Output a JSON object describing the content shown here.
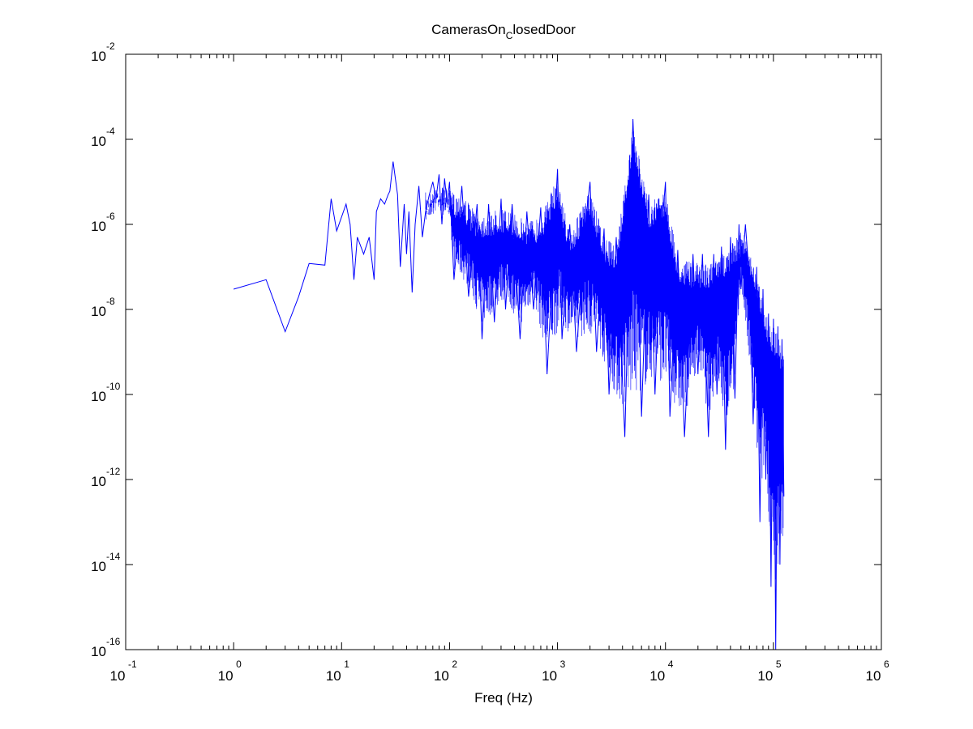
{
  "chart_data": {
    "type": "line",
    "title": {
      "main": "CamerasOn",
      "subscript": "C",
      "rest": "losedDoor"
    },
    "xlabel": "Freq (Hz)",
    "ylabel": "",
    "xscale": "log",
    "yscale": "log",
    "xlim": [
      0.1,
      1000000
    ],
    "ylim": [
      1e-16,
      0.01
    ],
    "grid": false,
    "legend": "none",
    "line_color": "#0000ff",
    "x_ticks": [
      {
        "base": "10",
        "exp": "-1",
        "value": 0.1
      },
      {
        "base": "10",
        "exp": "0",
        "value": 1
      },
      {
        "base": "10",
        "exp": "1",
        "value": 10
      },
      {
        "base": "10",
        "exp": "2",
        "value": 100
      },
      {
        "base": "10",
        "exp": "3",
        "value": 1000
      },
      {
        "base": "10",
        "exp": "4",
        "value": 10000
      },
      {
        "base": "10",
        "exp": "5",
        "value": 100000
      },
      {
        "base": "10",
        "exp": "6",
        "value": 1000000
      }
    ],
    "y_ticks": [
      {
        "base": "10",
        "exp": "-2",
        "value": 0.01
      },
      {
        "base": "10",
        "exp": "-4",
        "value": 0.0001
      },
      {
        "base": "10",
        "exp": "-6",
        "value": 1e-06
      },
      {
        "base": "10",
        "exp": "-8",
        "value": 1e-08
      },
      {
        "base": "10",
        "exp": "-10",
        "value": 1e-10
      },
      {
        "base": "10",
        "exp": "-12",
        "value": 1e-12
      },
      {
        "base": "10",
        "exp": "-14",
        "value": 1e-14
      },
      {
        "base": "10",
        "exp": "-16",
        "value": 1e-16
      }
    ],
    "series": [
      {
        "points": [
          [
            1,
            3e-08
          ],
          [
            2,
            5e-08
          ],
          [
            3,
            3e-09
          ],
          [
            4,
            2e-08
          ],
          [
            5,
            1.2e-07
          ],
          [
            7,
            1.1e-07
          ],
          [
            8,
            4e-06
          ],
          [
            9,
            7e-07
          ],
          [
            11,
            3e-06
          ],
          [
            12,
            1e-06
          ],
          [
            13,
            5e-08
          ],
          [
            14,
            5e-07
          ],
          [
            16,
            2e-07
          ],
          [
            18,
            5e-07
          ],
          [
            20,
            5e-08
          ],
          [
            21,
            2e-06
          ],
          [
            23,
            4e-06
          ],
          [
            25,
            3e-06
          ],
          [
            27,
            5e-06
          ],
          [
            28,
            6e-06
          ],
          [
            30,
            3e-05
          ],
          [
            33,
            5e-06
          ],
          [
            35,
            1e-07
          ],
          [
            38,
            3e-06
          ],
          [
            40,
            2e-07
          ],
          [
            42,
            2e-06
          ],
          [
            45,
            2.5e-08
          ],
          [
            48,
            1e-06
          ],
          [
            52,
            8e-06
          ],
          [
            56,
            5e-07
          ],
          [
            60,
            2e-06
          ],
          [
            65,
            5e-06
          ],
          [
            70,
            1e-05
          ],
          [
            75,
            4e-06
          ],
          [
            80,
            1.5e-05
          ],
          [
            85,
            1e-06
          ],
          [
            90,
            1.2e-05
          ],
          [
            95,
            3e-06
          ],
          [
            100,
            1e-05
          ],
          [
            110,
            5e-08
          ],
          [
            130,
            8e-06
          ],
          [
            150,
            2e-08
          ],
          [
            180,
            3e-06
          ],
          [
            200,
            2e-09
          ],
          [
            230,
            3e-06
          ],
          [
            260,
            5e-09
          ],
          [
            300,
            4e-06
          ],
          [
            330,
            1e-08
          ],
          [
            380,
            3e-06
          ],
          [
            450,
            2e-09
          ],
          [
            520,
            2e-06
          ],
          [
            600,
            1e-08
          ],
          [
            700,
            2.5e-06
          ],
          [
            800,
            3e-10
          ],
          [
            950,
            1.5e-06
          ],
          [
            1000,
            2e-05
          ],
          [
            1100,
            2e-09
          ],
          [
            1300,
            1e-06
          ],
          [
            1500,
            1e-09
          ],
          [
            1800,
            9e-07
          ],
          [
            2000,
            1e-05
          ],
          [
            2300,
            1e-09
          ],
          [
            2700,
            8e-07
          ],
          [
            3000,
            1e-10
          ],
          [
            3500,
            5e-07
          ],
          [
            4200,
            1e-11
          ],
          [
            5000,
            0.0003
          ],
          [
            5500,
            5e-07
          ],
          [
            6000,
            3e-11
          ],
          [
            7000,
            5e-06
          ],
          [
            8000,
            1e-10
          ],
          [
            9000,
            3e-07
          ],
          [
            10000,
            1e-05
          ],
          [
            11000,
            3e-11
          ],
          [
            13000,
            2.5e-07
          ],
          [
            15000,
            1e-11
          ],
          [
            18000,
            2e-07
          ],
          [
            20000,
            3e-10
          ],
          [
            22000,
            2e-07
          ],
          [
            25000,
            1e-11
          ],
          [
            28000,
            2e-07
          ],
          [
            30000,
            1e-10
          ],
          [
            33000,
            3e-07
          ],
          [
            36000,
            5e-12
          ],
          [
            40000,
            5e-07
          ],
          [
            44000,
            8e-11
          ],
          [
            48000,
            1e-06
          ],
          [
            50000,
            3e-08
          ],
          [
            55000,
            1e-06
          ],
          [
            60000,
            5e-08
          ],
          [
            65000,
            2e-11
          ],
          [
            70000,
            1e-07
          ],
          [
            75000,
            1e-13
          ],
          [
            80000,
            3e-08
          ],
          [
            85000,
            1e-12
          ],
          [
            90000,
            8e-09
          ],
          [
            95000,
            3e-15
          ],
          [
            100000,
            6e-09
          ],
          [
            105000,
            1e-16
          ],
          [
            110000,
            4e-09
          ],
          [
            115000,
            1e-14
          ],
          [
            120000,
            2e-09
          ],
          [
            125000,
            4e-13
          ]
        ]
      }
    ]
  }
}
